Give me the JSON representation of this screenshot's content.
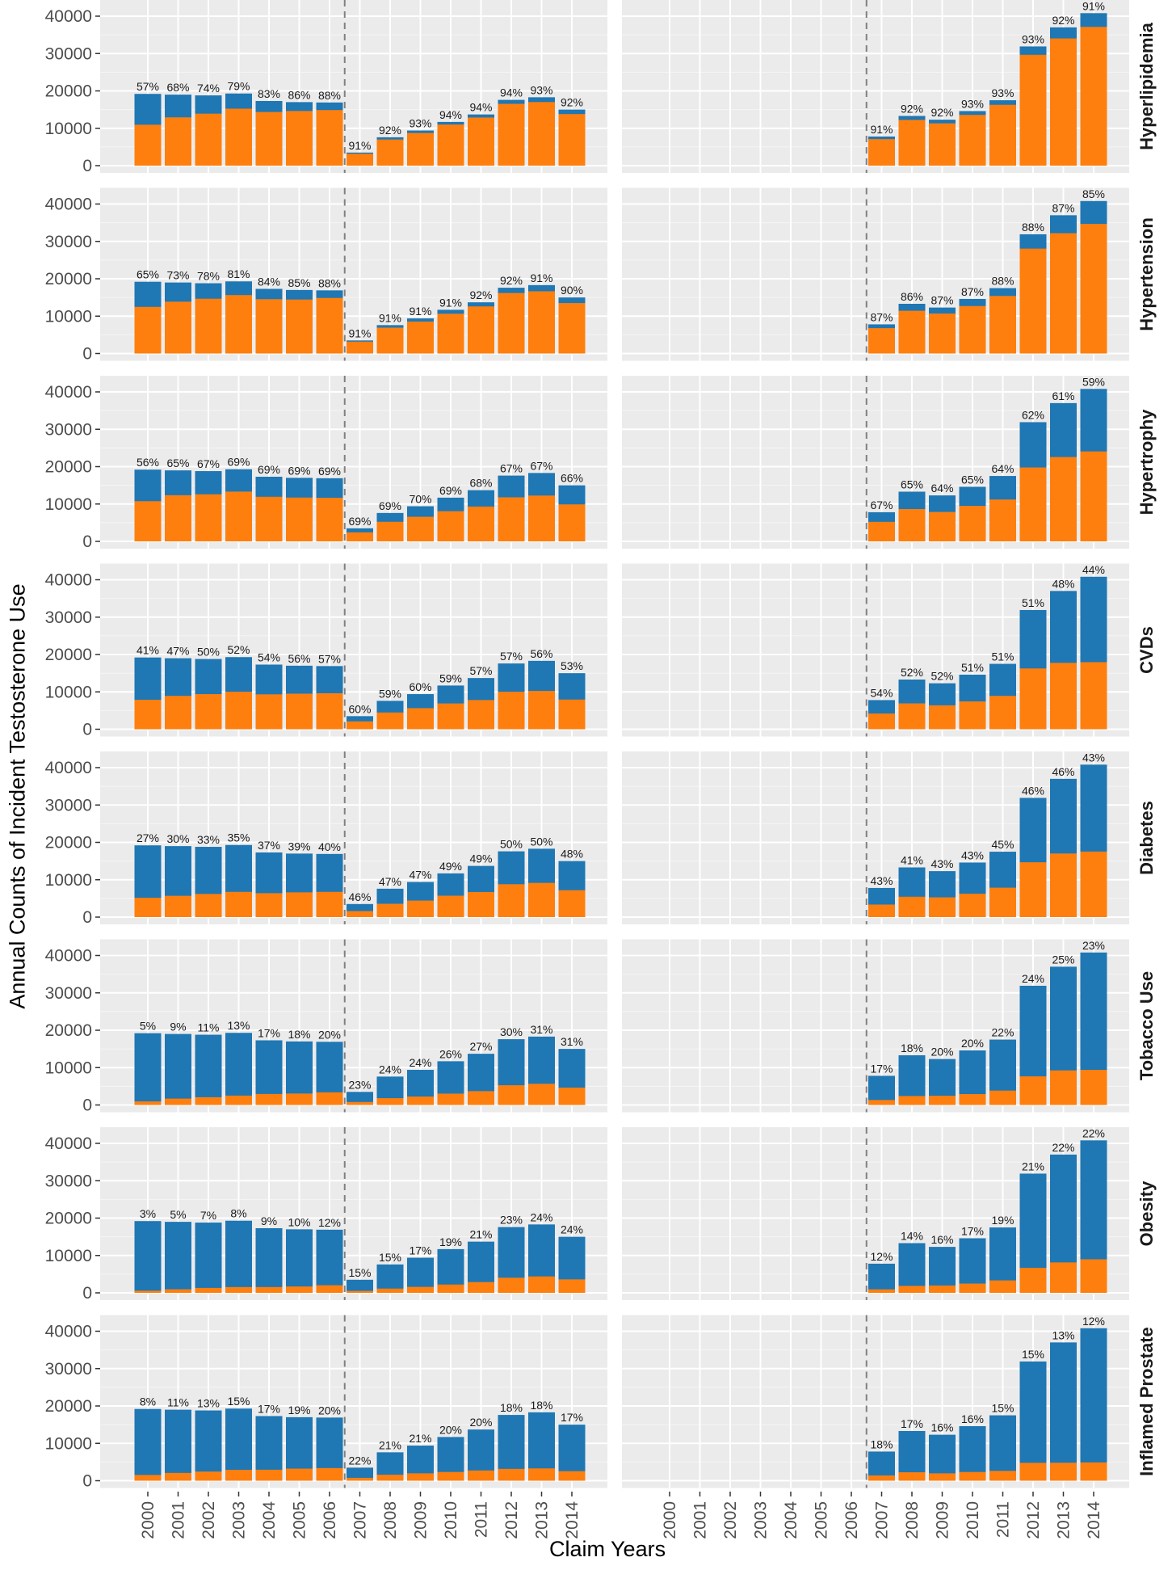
{
  "chart_data": {
    "type": "bar",
    "stacked": true,
    "ylabel": "Annual Counts of Incident Testosterone Use",
    "xlabel": "Claim Years",
    "years": [
      "2000",
      "2001",
      "2002",
      "2003",
      "2004",
      "2005",
      "2006",
      "2007",
      "2008",
      "2009",
      "2010",
      "2011",
      "2012",
      "2013",
      "2014"
    ],
    "y_ticks": [
      0,
      10000,
      20000,
      30000,
      40000
    ],
    "ylim": [
      0,
      41500
    ],
    "reference_line_between": [
      "2006",
      "2007"
    ],
    "colors": {
      "with_condition": "#FF7F0E",
      "without_condition": "#1F77B4",
      "panel_bg": "#EBEBEB",
      "grid": "#FFFFFF",
      "strip_bg": "#FFFFFF",
      "vline": "#808080"
    },
    "panels": [
      {
        "name": "left",
        "totals": [
          19200,
          19000,
          18800,
          19300,
          17300,
          17000,
          16900,
          3500,
          7600,
          9400,
          11700,
          13700,
          17600,
          18300,
          15000
        ],
        "start_index": 0
      },
      {
        "name": "right",
        "totals": [
          7800,
          13300,
          12300,
          14600,
          17500,
          31900,
          37000,
          40800
        ],
        "start_index": 7
      }
    ],
    "facets": [
      {
        "label": "Hyperlipidemia",
        "left_pct": [
          57,
          68,
          74,
          79,
          83,
          86,
          88,
          91,
          92,
          93,
          94,
          94,
          94,
          93,
          92
        ],
        "right_pct": [
          91,
          92,
          92,
          93,
          93,
          93,
          92,
          91
        ]
      },
      {
        "label": "Hypertension",
        "left_pct": [
          65,
          73,
          78,
          81,
          84,
          85,
          88,
          91,
          91,
          91,
          91,
          92,
          92,
          91,
          90
        ],
        "right_pct": [
          87,
          86,
          87,
          87,
          88,
          88,
          87,
          85
        ]
      },
      {
        "label": "Hypertrophy",
        "left_pct": [
          56,
          65,
          67,
          69,
          69,
          69,
          69,
          69,
          69,
          70,
          69,
          68,
          67,
          67,
          66
        ],
        "right_pct": [
          67,
          65,
          64,
          65,
          64,
          62,
          61,
          59
        ]
      },
      {
        "label": "CVDs",
        "left_pct": [
          41,
          47,
          50,
          52,
          54,
          56,
          57,
          60,
          59,
          60,
          59,
          57,
          57,
          56,
          53
        ],
        "right_pct": [
          54,
          52,
          52,
          51,
          51,
          51,
          48,
          44
        ]
      },
      {
        "label": "Diabetes",
        "left_pct": [
          27,
          30,
          33,
          35,
          37,
          39,
          40,
          46,
          47,
          47,
          49,
          49,
          50,
          50,
          48
        ],
        "right_pct": [
          43,
          41,
          43,
          43,
          45,
          46,
          46,
          43
        ]
      },
      {
        "label": "Tobacco Use",
        "left_pct": [
          5,
          9,
          11,
          13,
          17,
          18,
          20,
          23,
          24,
          24,
          26,
          27,
          30,
          31,
          31
        ],
        "right_pct": [
          17,
          18,
          20,
          20,
          22,
          24,
          25,
          23
        ]
      },
      {
        "label": "Obesity",
        "left_pct": [
          3,
          5,
          7,
          8,
          9,
          10,
          12,
          15,
          15,
          17,
          19,
          21,
          23,
          24,
          24
        ],
        "right_pct": [
          12,
          14,
          16,
          17,
          19,
          21,
          22,
          22
        ]
      },
      {
        "label": "Inflamed Prostate",
        "left_pct": [
          8,
          11,
          13,
          15,
          17,
          19,
          20,
          22,
          21,
          21,
          20,
          20,
          18,
          18,
          17
        ],
        "right_pct": [
          18,
          17,
          16,
          16,
          15,
          15,
          13,
          12
        ]
      }
    ]
  }
}
